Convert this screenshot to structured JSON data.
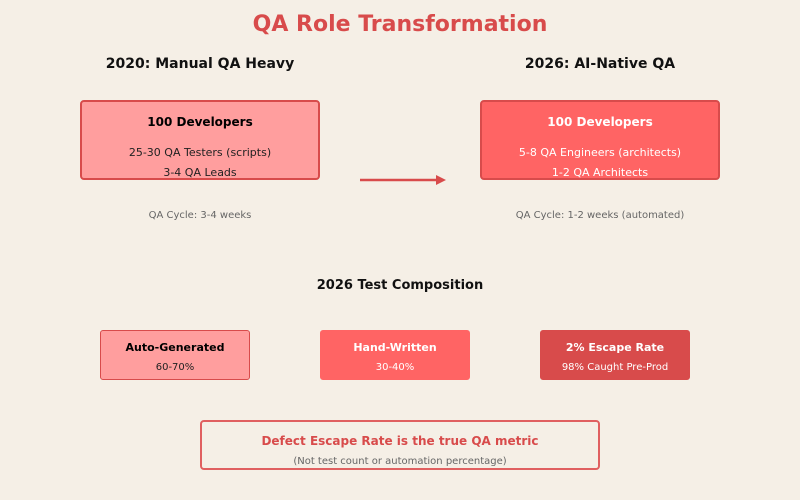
{
  "title": "QA Role Transformation",
  "before": {
    "heading": "2020: Manual QA Heavy",
    "team": "100 Developers",
    "line1": "25-30 QA Testers (scripts)",
    "line2": "3-4 QA Leads",
    "cycle": "QA Cycle: 3-4 weeks"
  },
  "after": {
    "heading": "2026: AI-Native QA",
    "team": "100 Developers",
    "line1": "5-8 QA Engineers (architects)",
    "line2": "1-2 QA Architects",
    "cycle": "QA Cycle: 1-2 weeks (automated)"
  },
  "composition": {
    "heading": "2026 Test Composition",
    "items": [
      {
        "label": "Auto-Generated",
        "value": "60-70%"
      },
      {
        "label": "Hand-Written",
        "value": "30-40%"
      },
      {
        "label": "2% Escape Rate",
        "value": "98% Caught Pre-Prod"
      }
    ]
  },
  "metric": {
    "main": "Defect Escape Rate is the true QA metric",
    "sub": "(Not test count or automation percentage)"
  },
  "colors": {
    "accent": "#d84b4b",
    "light": "#ff9e9e",
    "medium": "#ff6464",
    "background": "#f5efe6"
  }
}
